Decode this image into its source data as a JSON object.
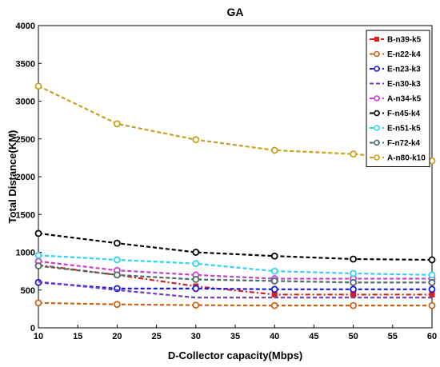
{
  "chart_data": {
    "type": "line",
    "title": "GA",
    "xlabel": "D-Collector capacity(Mbps)",
    "ylabel": "Total Distance(KM)",
    "xlim": [
      10,
      60
    ],
    "ylim": [
      0,
      4000
    ],
    "xticks": [
      10,
      15,
      20,
      25,
      30,
      35,
      40,
      45,
      50,
      55,
      60
    ],
    "yticks": [
      0,
      500,
      1000,
      1500,
      2000,
      2500,
      3000,
      3500,
      4000
    ],
    "x": [
      10,
      20,
      30,
      40,
      50,
      60
    ],
    "legend_position": "top-right",
    "grid": false,
    "series": [
      {
        "name": "B-n39-k5",
        "color": "#d62020",
        "marker": "square",
        "dash": "dash-dot",
        "values": [
          830,
          700,
          550,
          440,
          440,
          440
        ]
      },
      {
        "name": "E-n22-k4",
        "color": "#c8641e",
        "marker": "circle",
        "dash": "dash",
        "values": [
          330,
          310,
          300,
          295,
          295,
          295
        ]
      },
      {
        "name": "E-n23-k3",
        "color": "#1a1ad2",
        "marker": "circle",
        "dash": "dash",
        "values": [
          600,
          520,
          520,
          510,
          510,
          510
        ]
      },
      {
        "name": "E-n30-k3",
        "color": "#6a3cc8",
        "marker": "none",
        "dash": "dash",
        "values": [
          610,
          500,
          400,
          400,
          400,
          400
        ]
      },
      {
        "name": "A-n34-k5",
        "color": "#c83cd2",
        "marker": "circle",
        "dash": "dash",
        "values": [
          880,
          760,
          700,
          650,
          650,
          650
        ]
      },
      {
        "name": "F-n45-k4",
        "color": "#000000",
        "marker": "circle",
        "dash": "dash",
        "values": [
          1250,
          1120,
          1000,
          950,
          910,
          900
        ]
      },
      {
        "name": "E-n51-k5",
        "color": "#32d2f0",
        "marker": "circle",
        "dash": "dash",
        "values": [
          960,
          900,
          850,
          750,
          720,
          700
        ]
      },
      {
        "name": "F-n72-k4",
        "color": "#4a6a6a",
        "marker": "circle",
        "dash": "dash",
        "values": [
          820,
          700,
          640,
          620,
          600,
          600
        ]
      },
      {
        "name": "A-n80-k10",
        "color": "#c8a01e",
        "marker": "circle",
        "dash": "dash",
        "values": [
          3200,
          2700,
          2490,
          2350,
          2300,
          2210
        ]
      }
    ]
  }
}
